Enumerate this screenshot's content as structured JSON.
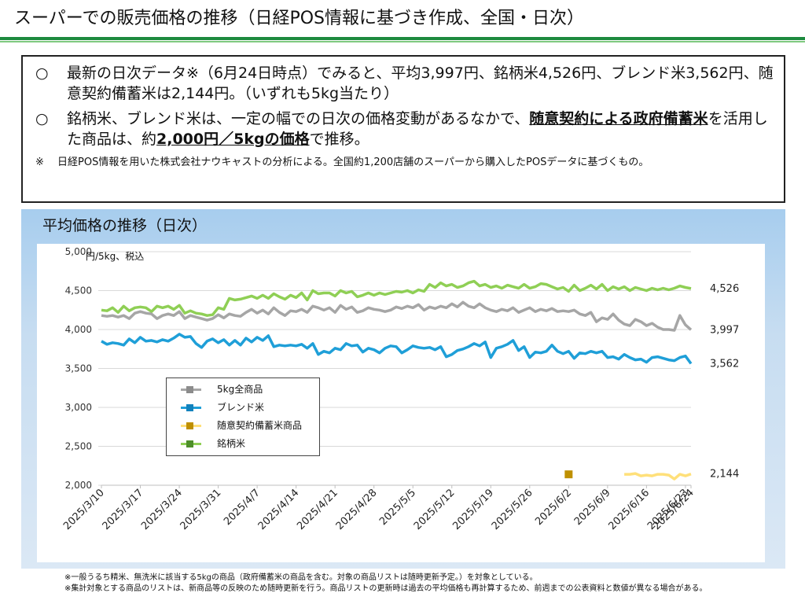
{
  "page": {
    "title": "スーパーでの販売価格の推移（日経POS情報に基づき作成、全国・日次）"
  },
  "summary": {
    "bullet_mark": "○",
    "bullet1": "最新の日次データ※（6月24日時点）でみると、平均3,997円、銘柄米4,526円、ブレンド米3,562円、随意契約備蓄米は2,144円。（いずれも5kg当たり）",
    "bullet2_pre": "銘柄米、ブレンド米は、一定の幅での日次の価格変動があるなかで、",
    "bullet2_underline": "随意契約による政府備蓄米",
    "bullet2_mid": "を活用した商品は、約",
    "bullet2_price": "2,000円／5kgの価格",
    "bullet2_post": "で推移。",
    "note_mark": "※",
    "note": "日経POS情報を用いた株式会社ナウキャストの分析による。全国約1,200店舗のスーパーから購入したPOSデータに基づくもの。"
  },
  "colors": {
    "all_products": "#a6a6a6",
    "blend": "#1f9fd8",
    "stockpile_line": "#ffe07a",
    "stockpile_marker": "#bf9000",
    "brand": "#8fcf55",
    "brand_marker": "#4e8f2a",
    "title_rule": "#1d8a3e",
    "panel_bg": "#c7ddf1"
  },
  "chart_data": {
    "type": "line",
    "title": "平均価格の推移（日次）",
    "ylabel": "円/5kg、税込",
    "ylim": [
      2000,
      5000
    ],
    "yticks": [
      "2,000",
      "2,500",
      "3,000",
      "3,500",
      "4,000",
      "4,500",
      "5,000"
    ],
    "xlim": [
      "2025/3/10",
      "2025/6/24"
    ],
    "xticks": [
      "2025/3/10",
      "2025/3/17",
      "2025/3/24",
      "2025/3/31",
      "2025/4/7",
      "2025/4/14",
      "2025/4/21",
      "2025/4/28",
      "2025/5/5",
      "2025/5/12",
      "2025/5/19",
      "2025/5/26",
      "2025/6/2",
      "2025/6/9",
      "2025/6/16",
      "2025/6/23",
      "2025/6/24"
    ],
    "legend_position": "center-left",
    "end_labels": [
      "4,526",
      "3,997",
      "3,562",
      "2,144"
    ],
    "series": [
      {
        "name": "5kg全商品",
        "color_key": "all_products",
        "x": [
          "2025/3/10",
          "2025/3/11",
          "2025/3/12",
          "2025/3/13",
          "2025/3/14",
          "2025/3/15",
          "2025/3/16",
          "2025/3/17",
          "2025/3/18",
          "2025/3/19",
          "2025/3/20",
          "2025/3/21",
          "2025/3/22",
          "2025/3/23",
          "2025/3/24",
          "2025/3/25",
          "2025/3/26",
          "2025/3/27",
          "2025/3/28",
          "2025/3/29",
          "2025/3/30",
          "2025/3/31",
          "2025/4/1",
          "2025/4/2",
          "2025/4/3",
          "2025/4/4",
          "2025/4/5",
          "2025/4/6",
          "2025/4/7",
          "2025/4/8",
          "2025/4/9",
          "2025/4/10",
          "2025/4/11",
          "2025/4/12",
          "2025/4/13",
          "2025/4/14",
          "2025/4/15",
          "2025/4/16",
          "2025/4/17",
          "2025/4/18",
          "2025/4/19",
          "2025/4/20",
          "2025/4/21",
          "2025/4/22",
          "2025/4/23",
          "2025/4/24",
          "2025/4/25",
          "2025/4/26",
          "2025/4/27",
          "2025/4/28",
          "2025/4/29",
          "2025/4/30",
          "2025/5/1",
          "2025/5/2",
          "2025/5/3",
          "2025/5/4",
          "2025/5/5",
          "2025/5/6",
          "2025/5/7",
          "2025/5/8",
          "2025/5/9",
          "2025/5/10",
          "2025/5/11",
          "2025/5/12",
          "2025/5/13",
          "2025/5/14",
          "2025/5/15",
          "2025/5/16",
          "2025/5/17",
          "2025/5/18",
          "2025/5/19",
          "2025/5/20",
          "2025/5/21",
          "2025/5/22",
          "2025/5/23",
          "2025/5/24",
          "2025/5/25",
          "2025/5/26",
          "2025/5/27",
          "2025/5/28",
          "2025/5/29",
          "2025/5/30",
          "2025/5/31",
          "2025/6/1",
          "2025/6/2",
          "2025/6/3",
          "2025/6/4",
          "2025/6/5",
          "2025/6/6",
          "2025/6/7",
          "2025/6/8",
          "2025/6/9",
          "2025/6/10",
          "2025/6/11",
          "2025/6/12",
          "2025/6/13",
          "2025/6/14",
          "2025/6/15",
          "2025/6/16",
          "2025/6/17",
          "2025/6/18",
          "2025/6/19",
          "2025/6/20",
          "2025/6/21",
          "2025/6/22",
          "2025/6/23",
          "2025/6/24"
        ],
        "values": [
          4180,
          4170,
          4180,
          4160,
          4180,
          4140,
          4210,
          4230,
          4210,
          4200,
          4140,
          4180,
          4200,
          4180,
          4230,
          4140,
          4180,
          4160,
          4140,
          4120,
          4140,
          4190,
          4150,
          4200,
          4180,
          4170,
          4220,
          4260,
          4210,
          4250,
          4200,
          4280,
          4220,
          4180,
          4240,
          4230,
          4260,
          4220,
          4300,
          4280,
          4250,
          4280,
          4220,
          4310,
          4260,
          4290,
          4220,
          4240,
          4280,
          4260,
          4250,
          4230,
          4250,
          4290,
          4270,
          4300,
          4280,
          4320,
          4250,
          4290,
          4270,
          4300,
          4280,
          4330,
          4290,
          4350,
          4300,
          4280,
          4330,
          4280,
          4250,
          4230,
          4260,
          4240,
          4280,
          4220,
          4250,
          4280,
          4230,
          4260,
          4240,
          4270,
          4230,
          4240,
          4230,
          4250,
          4200,
          4180,
          4220,
          4100,
          4150,
          4130,
          4200,
          4120,
          4070,
          4050,
          4130,
          4100,
          4050,
          4080,
          4030,
          4000,
          4000,
          3990,
          4180,
          4060,
          3997
        ]
      },
      {
        "name": "ブレンド米",
        "color_key": "blend",
        "x": [
          "2025/3/10",
          "2025/3/11",
          "2025/3/12",
          "2025/3/13",
          "2025/3/14",
          "2025/3/15",
          "2025/3/16",
          "2025/3/17",
          "2025/3/18",
          "2025/3/19",
          "2025/3/20",
          "2025/3/21",
          "2025/3/22",
          "2025/3/23",
          "2025/3/24",
          "2025/3/25",
          "2025/3/26",
          "2025/3/27",
          "2025/3/28",
          "2025/3/29",
          "2025/3/30",
          "2025/3/31",
          "2025/4/1",
          "2025/4/2",
          "2025/4/3",
          "2025/4/4",
          "2025/4/5",
          "2025/4/6",
          "2025/4/7",
          "2025/4/8",
          "2025/4/9",
          "2025/4/10",
          "2025/4/11",
          "2025/4/12",
          "2025/4/13",
          "2025/4/14",
          "2025/4/15",
          "2025/4/16",
          "2025/4/17",
          "2025/4/18",
          "2025/4/19",
          "2025/4/20",
          "2025/4/21",
          "2025/4/22",
          "2025/4/23",
          "2025/4/24",
          "2025/4/25",
          "2025/4/26",
          "2025/4/27",
          "2025/4/28",
          "2025/4/29",
          "2025/4/30",
          "2025/5/1",
          "2025/5/2",
          "2025/5/3",
          "2025/5/4",
          "2025/5/5",
          "2025/5/6",
          "2025/5/7",
          "2025/5/8",
          "2025/5/9",
          "2025/5/10",
          "2025/5/11",
          "2025/5/12",
          "2025/5/13",
          "2025/5/14",
          "2025/5/15",
          "2025/5/16",
          "2025/5/17",
          "2025/5/18",
          "2025/5/19",
          "2025/5/20",
          "2025/5/21",
          "2025/5/22",
          "2025/5/23",
          "2025/5/24",
          "2025/5/25",
          "2025/5/26",
          "2025/5/27",
          "2025/5/28",
          "2025/5/29",
          "2025/5/30",
          "2025/5/31",
          "2025/6/1",
          "2025/6/2",
          "2025/6/3",
          "2025/6/4",
          "2025/6/5",
          "2025/6/6",
          "2025/6/7",
          "2025/6/8",
          "2025/6/9",
          "2025/6/10",
          "2025/6/11",
          "2025/6/12",
          "2025/6/13",
          "2025/6/14",
          "2025/6/15",
          "2025/6/16",
          "2025/6/17",
          "2025/6/18",
          "2025/6/19",
          "2025/6/20",
          "2025/6/21",
          "2025/6/22",
          "2025/6/23",
          "2025/6/24"
        ],
        "values": [
          3850,
          3810,
          3830,
          3820,
          3800,
          3880,
          3830,
          3900,
          3850,
          3860,
          3840,
          3870,
          3850,
          3890,
          3940,
          3900,
          3910,
          3820,
          3770,
          3850,
          3880,
          3830,
          3870,
          3800,
          3860,
          3800,
          3890,
          3840,
          3900,
          3860,
          3920,
          3780,
          3800,
          3790,
          3800,
          3790,
          3810,
          3760,
          3820,
          3680,
          3720,
          3700,
          3760,
          3740,
          3820,
          3790,
          3800,
          3710,
          3760,
          3740,
          3700,
          3760,
          3790,
          3780,
          3700,
          3740,
          3790,
          3770,
          3760,
          3770,
          3740,
          3780,
          3650,
          3680,
          3730,
          3750,
          3780,
          3820,
          3790,
          3840,
          3640,
          3760,
          3780,
          3810,
          3860,
          3730,
          3780,
          3640,
          3710,
          3700,
          3720,
          3800,
          3720,
          3690,
          3720,
          3630,
          3700,
          3690,
          3720,
          3700,
          3720,
          3640,
          3650,
          3620,
          3680,
          3640,
          3610,
          3620,
          3580,
          3640,
          3650,
          3630,
          3610,
          3600,
          3640,
          3660,
          3562
        ]
      },
      {
        "name": "随意契約備蓄米商品",
        "color_key": "stockpile_line",
        "marker_color_key": "stockpile_marker",
        "single_point": {
          "x": "2025/6/2",
          "y": 2140
        },
        "x": [
          "2025/6/12",
          "2025/6/13",
          "2025/6/14",
          "2025/6/15",
          "2025/6/16",
          "2025/6/17",
          "2025/6/18",
          "2025/6/19",
          "2025/6/20",
          "2025/6/21",
          "2025/6/22",
          "2025/6/23",
          "2025/6/24"
        ],
        "values": [
          2140,
          2140,
          2150,
          2120,
          2130,
          2120,
          2140,
          2140,
          2130,
          2080,
          2140,
          2120,
          2144
        ]
      },
      {
        "name": "銘柄米",
        "color_key": "brand",
        "x": [
          "2025/3/10",
          "2025/3/11",
          "2025/3/12",
          "2025/3/13",
          "2025/3/14",
          "2025/3/15",
          "2025/3/16",
          "2025/3/17",
          "2025/3/18",
          "2025/3/19",
          "2025/3/20",
          "2025/3/21",
          "2025/3/22",
          "2025/3/23",
          "2025/3/24",
          "2025/3/25",
          "2025/3/26",
          "2025/3/27",
          "2025/3/28",
          "2025/3/29",
          "2025/3/30",
          "2025/3/31",
          "2025/4/1",
          "2025/4/2",
          "2025/4/3",
          "2025/4/4",
          "2025/4/5",
          "2025/4/6",
          "2025/4/7",
          "2025/4/8",
          "2025/4/9",
          "2025/4/10",
          "2025/4/11",
          "2025/4/12",
          "2025/4/13",
          "2025/4/14",
          "2025/4/15",
          "2025/4/16",
          "2025/4/17",
          "2025/4/18",
          "2025/4/19",
          "2025/4/20",
          "2025/4/21",
          "2025/4/22",
          "2025/4/23",
          "2025/4/24",
          "2025/4/25",
          "2025/4/26",
          "2025/4/27",
          "2025/4/28",
          "2025/4/29",
          "2025/4/30",
          "2025/5/1",
          "2025/5/2",
          "2025/5/3",
          "2025/5/4",
          "2025/5/5",
          "2025/5/6",
          "2025/5/7",
          "2025/5/8",
          "2025/5/9",
          "2025/5/10",
          "2025/5/11",
          "2025/5/12",
          "2025/5/13",
          "2025/5/14",
          "2025/5/15",
          "2025/5/16",
          "2025/5/17",
          "2025/5/18",
          "2025/5/19",
          "2025/5/20",
          "2025/5/21",
          "2025/5/22",
          "2025/5/23",
          "2025/5/24",
          "2025/5/25",
          "2025/5/26",
          "2025/5/27",
          "2025/5/28",
          "2025/5/29",
          "2025/5/30",
          "2025/5/31",
          "2025/6/1",
          "2025/6/2",
          "2025/6/3",
          "2025/6/4",
          "2025/6/5",
          "2025/6/6",
          "2025/6/7",
          "2025/6/8",
          "2025/6/9",
          "2025/6/10",
          "2025/6/11",
          "2025/6/12",
          "2025/6/13",
          "2025/6/14",
          "2025/6/15",
          "2025/6/16",
          "2025/6/17",
          "2025/6/18",
          "2025/6/19",
          "2025/6/20",
          "2025/6/21",
          "2025/6/22",
          "2025/6/23",
          "2025/6/24"
        ],
        "values": [
          4250,
          4240,
          4280,
          4220,
          4300,
          4240,
          4280,
          4290,
          4280,
          4230,
          4300,
          4280,
          4300,
          4260,
          4310,
          4210,
          4240,
          4210,
          4200,
          4180,
          4190,
          4280,
          4260,
          4400,
          4380,
          4390,
          4410,
          4430,
          4400,
          4440,
          4400,
          4460,
          4420,
          4390,
          4440,
          4410,
          4470,
          4380,
          4500,
          4460,
          4470,
          4470,
          4430,
          4500,
          4470,
          4490,
          4420,
          4440,
          4470,
          4440,
          4470,
          4450,
          4470,
          4490,
          4480,
          4500,
          4470,
          4510,
          4490,
          4580,
          4540,
          4600,
          4560,
          4580,
          4540,
          4560,
          4600,
          4620,
          4560,
          4580,
          4540,
          4560,
          4530,
          4570,
          4550,
          4530,
          4580,
          4530,
          4550,
          4590,
          4580,
          4550,
          4520,
          4540,
          4490,
          4570,
          4500,
          4530,
          4570,
          4520,
          4580,
          4500,
          4550,
          4520,
          4550,
          4500,
          4540,
          4520,
          4500,
          4530,
          4510,
          4530,
          4510,
          4530,
          4560,
          4540,
          4526
        ]
      }
    ]
  },
  "footnotes": [
    "※一般うるち精米、無洗米に該当する5kgの商品（政府備蓄米の商品を含む。対象の商品リストは随時更新予定。）を対象としている。",
    "※集計対象とする商品のリストは、新商品等の反映のため随時更新を行う。商品リストの更新時は過去の平均価格も再計算するため、前週までの公表資料と数値が異なる場合がある。"
  ]
}
